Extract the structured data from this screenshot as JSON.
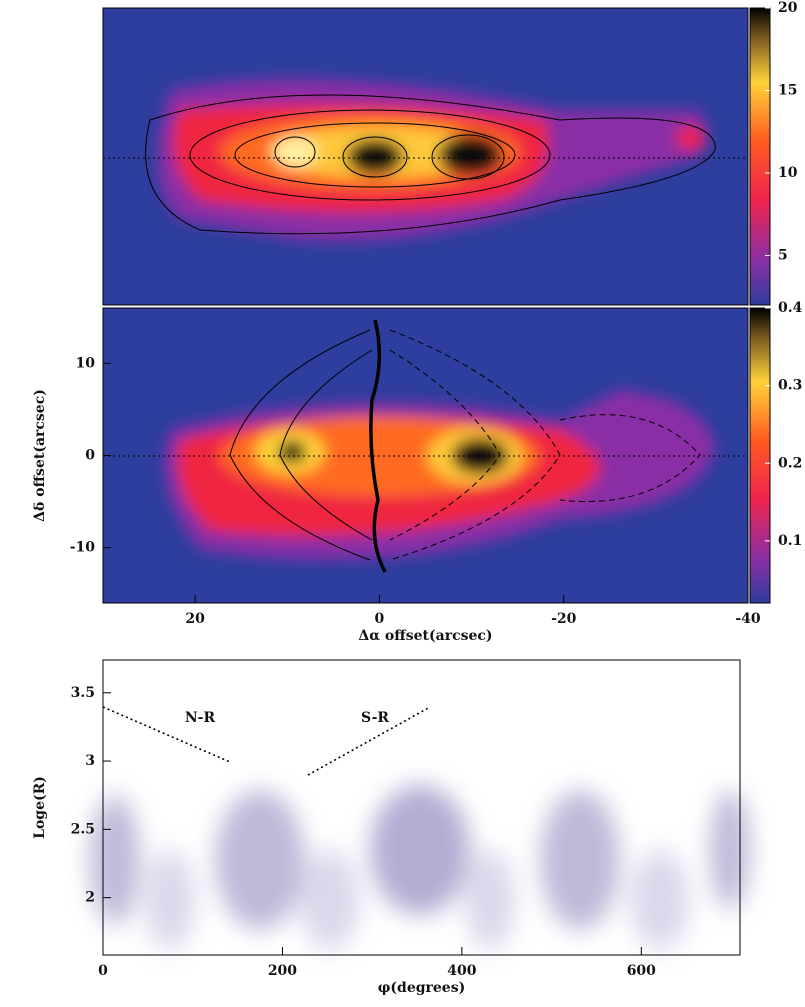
{
  "chart_data": [
    {
      "type": "image",
      "colorbar": {
        "lim": [
          2,
          20
        ],
        "ticks": [
          5,
          10,
          15,
          20
        ]
      }
    },
    {
      "type": "image",
      "xlabel": "Δα offset(arcsec)",
      "ylabel": "Δδ offset(arcsec)",
      "xlim": [
        30,
        -40
      ],
      "xticks": [
        20,
        0,
        -20,
        -40
      ],
      "ylim": [
        -16,
        16
      ],
      "yticks": [
        -10,
        0,
        10
      ],
      "colorbar": {
        "lim": [
          0.02,
          0.4
        ],
        "ticks": [
          0.1,
          0.2,
          0.3,
          0.4
        ]
      }
    },
    {
      "type": "contour",
      "xlabel": "φ(degrees)",
      "ylabel": "Loge(R)",
      "xlim": [
        0,
        710
      ],
      "xticks": [
        0,
        200,
        400,
        600
      ],
      "ylim": [
        1.58,
        3.74
      ],
      "yticks": [
        2,
        2.5,
        3,
        3.5
      ],
      "annotations": [
        "N-R",
        "S-R"
      ]
    }
  ]
}
